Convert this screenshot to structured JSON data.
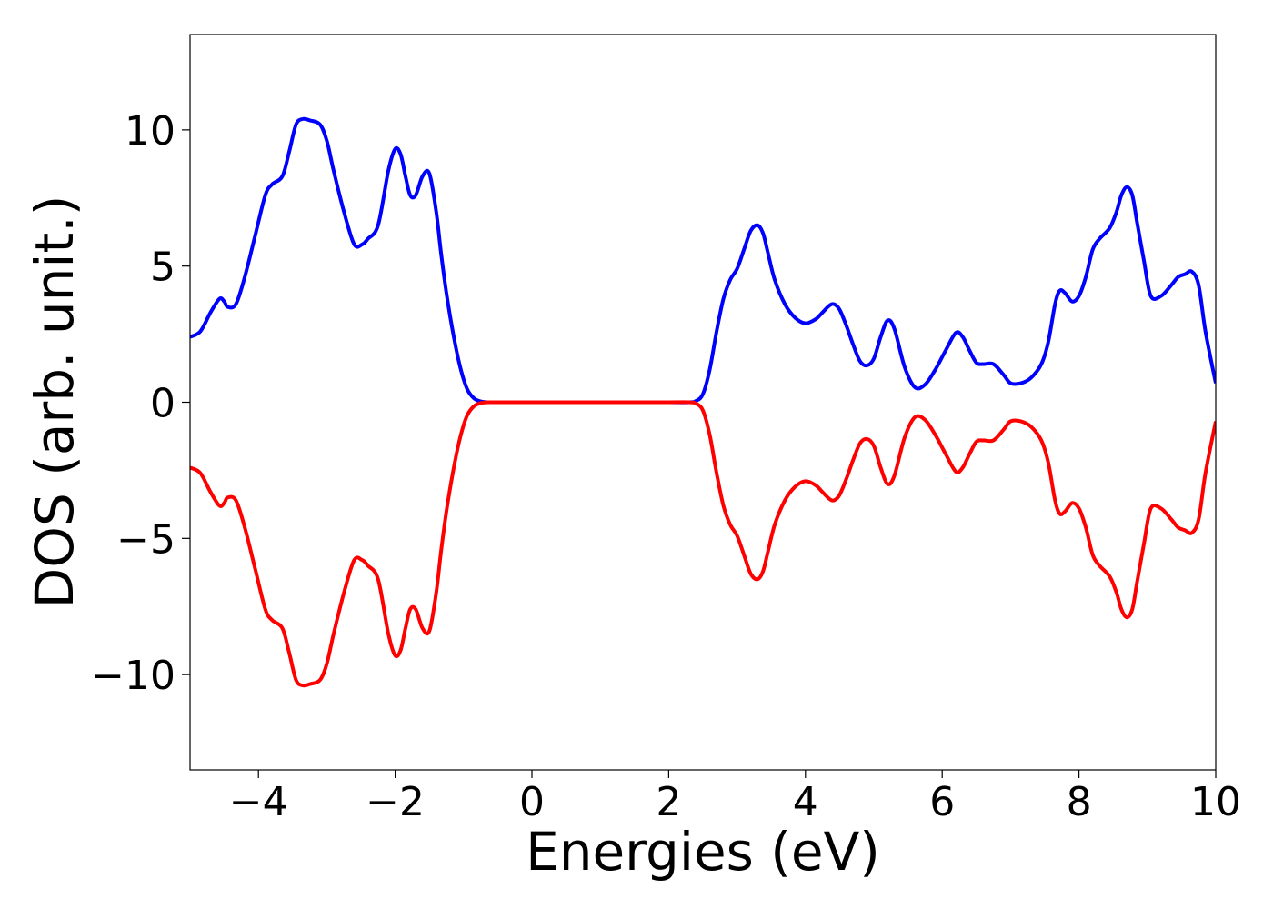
{
  "chart_data": {
    "type": "line",
    "title": "",
    "xlabel": "Energies (eV)",
    "ylabel": "DOS (arb. unit.)",
    "xlim": [
      -5,
      10
    ],
    "ylim": [
      -13.5,
      13.5
    ],
    "xticks": [
      -4,
      -2,
      0,
      2,
      4,
      6,
      8,
      10
    ],
    "xtick_labels": [
      "−4",
      "−2",
      "0",
      "2",
      "4",
      "6",
      "8",
      "10"
    ],
    "yticks": [
      -10,
      -5,
      0,
      5,
      10
    ],
    "ytick_labels": [
      "−10",
      "−5",
      "0",
      "5",
      "10"
    ],
    "grid": false,
    "legend": "none",
    "mirror_negative_series": true,
    "series": [
      {
        "color": "#0000ff",
        "x": [
          -5.0,
          -4.85,
          -4.7,
          -4.57,
          -4.5,
          -4.45,
          -4.33,
          -4.2,
          -4.05,
          -3.9,
          -3.8,
          -3.65,
          -3.55,
          -3.45,
          -3.35,
          -3.25,
          -3.1,
          -3.0,
          -2.9,
          -2.75,
          -2.6,
          -2.48,
          -2.4,
          -2.25,
          -2.1,
          -2.0,
          -1.92,
          -1.85,
          -1.78,
          -1.7,
          -1.6,
          -1.5,
          -1.4,
          -1.33,
          -1.25,
          -1.15,
          -1.05,
          -0.95,
          -0.85,
          -0.75,
          -0.65,
          -0.55,
          -0.4,
          0.0,
          1.0,
          2.0,
          2.3,
          2.4,
          2.5,
          2.6,
          2.7,
          2.8,
          2.9,
          3.0,
          3.1,
          3.2,
          3.3,
          3.38,
          3.45,
          3.55,
          3.7,
          3.85,
          4.0,
          4.15,
          4.25,
          4.35,
          4.42,
          4.5,
          4.6,
          4.7,
          4.8,
          4.9,
          5.0,
          5.1,
          5.2,
          5.3,
          5.45,
          5.6,
          5.75,
          5.9,
          6.05,
          6.2,
          6.3,
          6.4,
          6.5,
          6.6,
          6.75,
          6.9,
          7.0,
          7.15,
          7.3,
          7.45,
          7.55,
          7.65,
          7.72,
          7.8,
          7.9,
          8.0,
          8.1,
          8.2,
          8.3,
          8.45,
          8.55,
          8.62,
          8.7,
          8.78,
          8.85,
          8.95,
          9.05,
          9.2,
          9.35,
          9.45,
          9.55,
          9.65,
          9.75,
          9.85,
          10.0
        ],
        "values": [
          2.4,
          2.6,
          3.3,
          3.8,
          3.7,
          3.5,
          3.6,
          4.6,
          6.1,
          7.6,
          8.0,
          8.3,
          9.2,
          10.2,
          10.4,
          10.35,
          10.2,
          9.6,
          8.5,
          7.0,
          5.8,
          5.8,
          6.0,
          6.5,
          8.5,
          9.3,
          9.1,
          8.3,
          7.6,
          7.6,
          8.3,
          8.4,
          7.0,
          5.5,
          4.0,
          2.5,
          1.3,
          0.5,
          0.15,
          0.03,
          0.0,
          0.0,
          0.0,
          0.0,
          0.0,
          0.0,
          0.0,
          0.05,
          0.3,
          1.2,
          2.6,
          3.8,
          4.5,
          4.9,
          5.6,
          6.3,
          6.5,
          6.2,
          5.5,
          4.5,
          3.6,
          3.1,
          2.9,
          3.05,
          3.3,
          3.55,
          3.6,
          3.4,
          2.8,
          2.1,
          1.5,
          1.35,
          1.6,
          2.4,
          3.0,
          2.7,
          1.3,
          0.55,
          0.65,
          1.2,
          1.9,
          2.55,
          2.4,
          1.9,
          1.45,
          1.4,
          1.4,
          1.0,
          0.7,
          0.7,
          0.9,
          1.4,
          2.2,
          3.6,
          4.1,
          4.0,
          3.7,
          3.9,
          4.6,
          5.6,
          6.0,
          6.4,
          7.0,
          7.6,
          7.9,
          7.6,
          6.6,
          5.2,
          3.9,
          3.9,
          4.3,
          4.6,
          4.7,
          4.8,
          4.3,
          2.6,
          0.7
        ]
      },
      {
        "color": "#ff0000",
        "x": [
          -5.0,
          -4.85,
          -4.7,
          -4.57,
          -4.5,
          -4.45,
          -4.33,
          -4.2,
          -4.05,
          -3.9,
          -3.8,
          -3.65,
          -3.55,
          -3.45,
          -3.35,
          -3.25,
          -3.1,
          -3.0,
          -2.9,
          -2.75,
          -2.6,
          -2.48,
          -2.4,
          -2.25,
          -2.1,
          -2.0,
          -1.92,
          -1.85,
          -1.78,
          -1.7,
          -1.6,
          -1.5,
          -1.4,
          -1.33,
          -1.25,
          -1.15,
          -1.05,
          -0.95,
          -0.85,
          -0.75,
          -0.65,
          -0.55,
          -0.4,
          0.0,
          1.0,
          2.0,
          2.3,
          2.4,
          2.5,
          2.6,
          2.7,
          2.8,
          2.9,
          3.0,
          3.1,
          3.2,
          3.3,
          3.38,
          3.45,
          3.55,
          3.7,
          3.85,
          4.0,
          4.15,
          4.25,
          4.35,
          4.42,
          4.5,
          4.6,
          4.7,
          4.8,
          4.9,
          5.0,
          5.1,
          5.2,
          5.3,
          5.45,
          5.6,
          5.75,
          5.9,
          6.05,
          6.2,
          6.3,
          6.4,
          6.5,
          6.6,
          6.75,
          6.9,
          7.0,
          7.15,
          7.3,
          7.45,
          7.55,
          7.65,
          7.72,
          7.8,
          7.9,
          8.0,
          8.1,
          8.2,
          8.3,
          8.45,
          8.55,
          8.62,
          8.7,
          8.78,
          8.85,
          8.95,
          9.05,
          9.2,
          9.35,
          9.45,
          9.55,
          9.65,
          9.75,
          9.85,
          10.0
        ],
        "values": [
          -2.4,
          -2.6,
          -3.3,
          -3.8,
          -3.7,
          -3.5,
          -3.6,
          -4.6,
          -6.1,
          -7.6,
          -8.0,
          -8.3,
          -9.2,
          -10.2,
          -10.4,
          -10.35,
          -10.2,
          -9.6,
          -8.5,
          -7.0,
          -5.8,
          -5.8,
          -6.0,
          -6.5,
          -8.5,
          -9.3,
          -9.1,
          -8.3,
          -7.6,
          -7.6,
          -8.3,
          -8.4,
          -7.0,
          -5.5,
          -4.0,
          -2.5,
          -1.3,
          -0.5,
          -0.15,
          -0.03,
          0.0,
          0.0,
          0.0,
          0.0,
          0.0,
          0.0,
          0.0,
          -0.05,
          -0.3,
          -1.2,
          -2.6,
          -3.8,
          -4.5,
          -4.9,
          -5.6,
          -6.3,
          -6.5,
          -6.2,
          -5.5,
          -4.5,
          -3.6,
          -3.1,
          -2.9,
          -3.05,
          -3.3,
          -3.55,
          -3.6,
          -3.4,
          -2.8,
          -2.1,
          -1.5,
          -1.35,
          -1.6,
          -2.4,
          -3.0,
          -2.7,
          -1.3,
          -0.55,
          -0.65,
          -1.2,
          -1.9,
          -2.55,
          -2.4,
          -1.9,
          -1.45,
          -1.4,
          -1.4,
          -1.0,
          -0.7,
          -0.7,
          -0.9,
          -1.4,
          -2.2,
          -3.6,
          -4.1,
          -4.0,
          -3.7,
          -3.9,
          -4.6,
          -5.6,
          -6.0,
          -6.4,
          -7.0,
          -7.6,
          -7.9,
          -7.6,
          -6.6,
          -5.2,
          -3.9,
          -3.9,
          -4.3,
          -4.6,
          -4.7,
          -4.8,
          -4.3,
          -2.6,
          -0.7
        ]
      }
    ]
  }
}
